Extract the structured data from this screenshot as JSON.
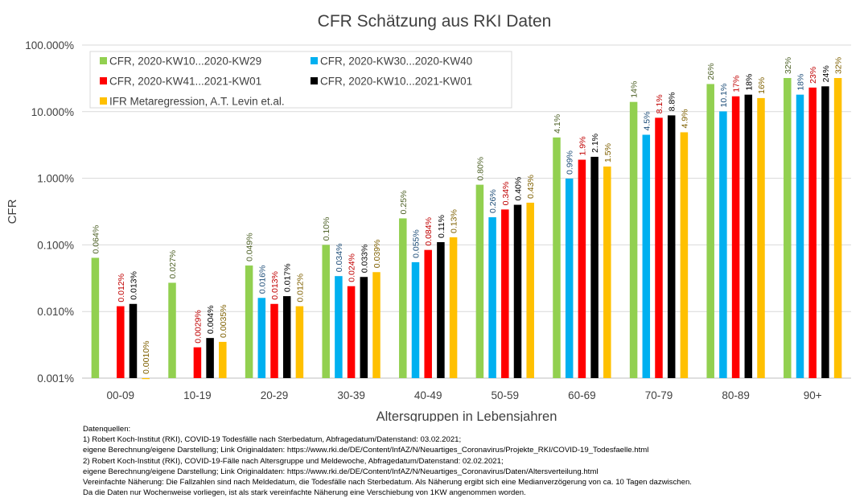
{
  "chart_data": {
    "type": "bar",
    "title": "CFR Schätzung aus RKI Daten",
    "xlabel": "Altersgruppen in Lebensjahren",
    "ylabel": "CFR",
    "yscale": "log",
    "ylim": [
      0.001,
      100
    ],
    "yticks": [
      "0.001%",
      "0.010%",
      "0.100%",
      "1.000%",
      "10.000%",
      "100.000%"
    ],
    "grid": true,
    "legend_position": "top-left",
    "categories": [
      "00-09",
      "10-19",
      "20-29",
      "30-39",
      "40-49",
      "50-59",
      "60-69",
      "70-79",
      "80-89",
      "90+"
    ],
    "series": [
      {
        "name": "CFR, 2020-KW10...2020-KW29",
        "color": "#92d050",
        "label_color": "#4f6228",
        "values": [
          0.064,
          0.027,
          0.049,
          0.1,
          0.25,
          0.8,
          4.1,
          14,
          26,
          32
        ],
        "labels": [
          "0.064%",
          "0.027%",
          "0.049%",
          "0.10%",
          "0.25%",
          "0.80%",
          "4.1%",
          "14%",
          "26%",
          "32%"
        ]
      },
      {
        "name": "CFR, 2020-KW30...2020-KW40",
        "color": "#00b0f0",
        "label_color": "#1f4e79",
        "values": [
          null,
          null,
          0.016,
          0.034,
          0.055,
          0.26,
          0.99,
          4.5,
          10.1,
          18
        ],
        "labels": [
          "",
          "",
          "0.016%",
          "0.034%",
          "0.055%",
          "0.26%",
          "0.99%",
          "4.5%",
          "10.1%",
          "18%"
        ]
      },
      {
        "name": "CFR, 2020-KW41...2021-KW01",
        "color": "#ff0000",
        "label_color": "#c00000",
        "values": [
          0.012,
          0.0029,
          0.013,
          0.024,
          0.084,
          0.34,
          1.9,
          8.1,
          17,
          23
        ],
        "labels": [
          "0.012%",
          "0.0029%",
          "0.013%",
          "0.024%",
          "0.084%",
          "0.34%",
          "1.9%",
          "8.1%",
          "17%",
          "23%"
        ]
      },
      {
        "name": "CFR, 2020-KW10...2021-KW01",
        "color": "#000000",
        "label_color": "#000000",
        "values": [
          0.013,
          0.004,
          0.017,
          0.033,
          0.11,
          0.4,
          2.1,
          8.8,
          18,
          24
        ],
        "labels": [
          "0.013%",
          "0.004%",
          "0.017%",
          "0.033%",
          "0.11%",
          "0.40%",
          "2.1%",
          "8.8%",
          "18%",
          "24%"
        ]
      },
      {
        "name": "IFR Metaregression, A.T. Levin et.al.",
        "color": "#ffc000",
        "label_color": "#7f6000",
        "values": [
          0.001,
          0.0035,
          0.012,
          0.039,
          0.13,
          0.43,
          1.5,
          4.9,
          16,
          32
        ],
        "labels": [
          "0.0010%",
          "0.0035%",
          "0.012%",
          "0.039%",
          "0.13%",
          "0.43%",
          "1.5%",
          "4.9%",
          "16%",
          "32%"
        ]
      }
    ]
  },
  "notes": [
    "Datenquellen:",
    "1) Robert Koch-Institut (RKI), COVID-19 Todesfälle nach Sterbedatum, Abfragedatum/Datenstand: 03.02.2021;",
    "eigene Berechnung/eigene Darstellung; Link Originaldaten: https://www.rki.de/DE/Content/InfAZ/N/Neuartiges_Coronavirus/Projekte_RKI/COVID-19_Todesfaelle.html",
    "2) Robert Koch-Institut (RKI), COVID-19-Fälle nach Altersgruppe und Meldewoche, Abfragedatum/Datenstand: 02.02.2021;",
    "eigene Berechnung/eigene Darstellung; Link Originaldaten: https://www.rki.de/DE/Content/InfAZ/N/Neuartiges_Coronavirus/Daten/Altersverteilung.html",
    "Vereinfachte Näherung: Die Fallzahlen sind nach Meldedatum, die Todesfälle nach Sterbedatum. Als Näherung ergibt sich eine Medianverzögerung von ca. 10 Tagen dazwischen.",
    "Da die Daten nur Wochenweise vorliegen, ist als stark vereinfachte Näherung eine Verschiebung von 1KW angenommen worden."
  ]
}
